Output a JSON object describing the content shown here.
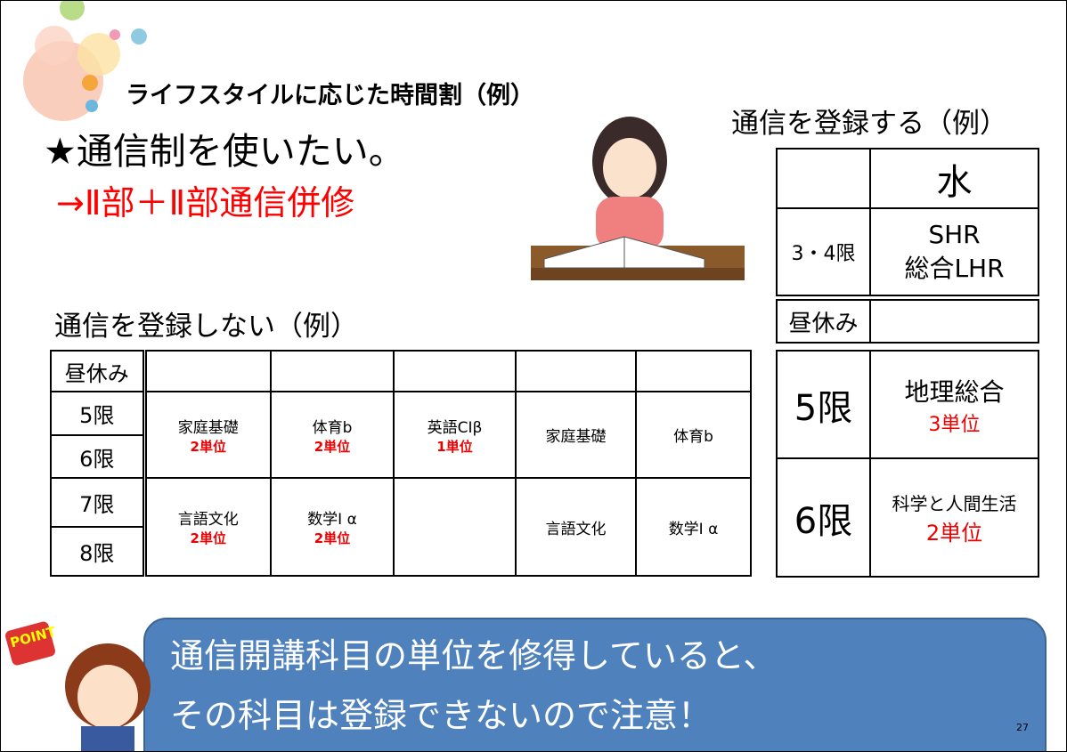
{
  "slide": {
    "subtitle": "ライフスタイルに応じた時間割（例）",
    "heading": "★通信制を使いたい。",
    "plan": "→Ⅱ部＋Ⅱ部通信併修",
    "left_table": {
      "title": "通信を登録しない（例）",
      "periods": [
        "昼休み",
        "5限",
        "6限",
        "7限",
        "8限"
      ],
      "block_5_6": [
        {
          "subject": "家庭基礎",
          "credits": "2単位"
        },
        {
          "subject": "体育b",
          "credits": "2単位"
        },
        {
          "subject": "英語CⅠβ",
          "credits": "1単位"
        },
        {
          "subject": "家庭基礎"
        },
        {
          "subject": "体育b"
        }
      ],
      "block_7_8": [
        {
          "subject": "言語文化",
          "credits": "2単位"
        },
        {
          "subject": "数学Ⅰ α",
          "credits": "2単位"
        },
        {
          "subject": "言語文化"
        },
        {
          "subject": "数学Ⅰ α"
        }
      ]
    },
    "right_table": {
      "title": "通信を登録する（例）",
      "day": "水",
      "rows": [
        {
          "period": "3・4限",
          "lines": [
            "SHR",
            "総合LHR"
          ]
        },
        {
          "period": "昼休み"
        },
        {
          "period": "5限",
          "subject": "地理総合",
          "credits": "3単位"
        },
        {
          "period": "6限",
          "subject": "科学と人間生活",
          "credits": "2単位"
        }
      ]
    },
    "point_badge": "POINT",
    "note": [
      "通信開講科目の単位を修得していると、",
      "その科目は登録できないので注意！"
    ],
    "page_number": "27"
  }
}
